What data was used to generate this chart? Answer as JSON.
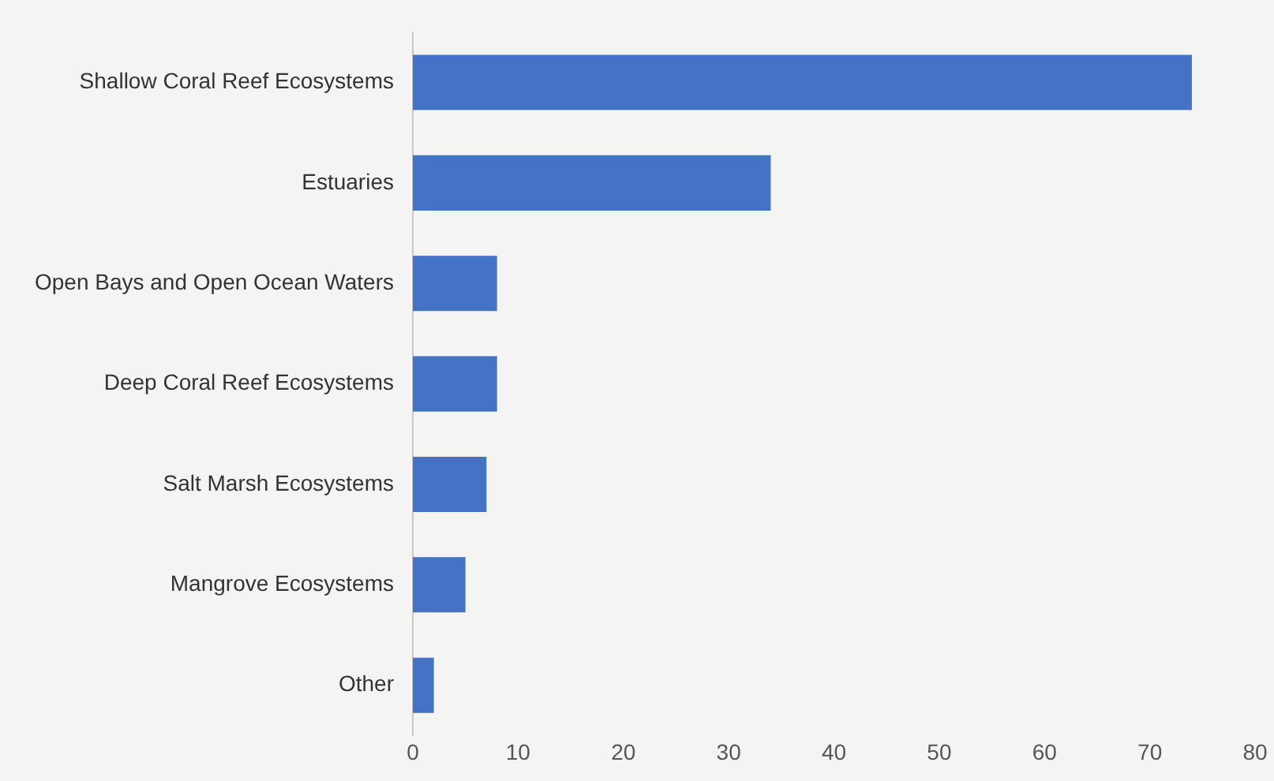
{
  "chart_data": {
    "type": "bar",
    "orientation": "horizontal",
    "categories": [
      "Shallow Coral Reef Ecosystems",
      "Estuaries",
      "Open Bays and Open Ocean Waters",
      "Deep Coral Reef Ecosystems",
      "Salt Marsh Ecosystems",
      "Mangrove Ecosystems",
      "Other"
    ],
    "values": [
      74,
      34,
      8,
      8,
      7,
      5,
      2
    ],
    "color": "#4472c4",
    "xlim": [
      0,
      80
    ],
    "xticks": [
      0,
      10,
      20,
      30,
      40,
      50,
      60,
      70,
      80
    ],
    "grid": false,
    "legend": false
  }
}
